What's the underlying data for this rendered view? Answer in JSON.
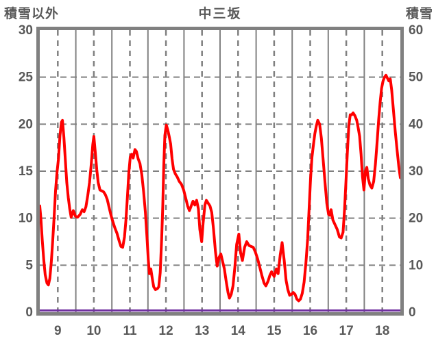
{
  "header": {
    "left_axis_title": "積雪以外",
    "title": "中三坂",
    "right_axis_title": "積雪"
  },
  "chart_data": {
    "type": "line",
    "title": "中三坂",
    "left_axis": {
      "title": "積雪以外",
      "min": 0,
      "max": 30,
      "tick_values": [
        0,
        5,
        10,
        15,
        20,
        25,
        30
      ],
      "tick_labels": [
        "0",
        "5",
        "10",
        "15",
        "20",
        "25",
        "30"
      ]
    },
    "right_axis": {
      "title": "積雪",
      "min": 0,
      "max": 60,
      "tick_values": [
        0,
        10,
        20,
        30,
        40,
        50,
        60
      ],
      "tick_labels": [
        "0",
        "10",
        "20",
        "30",
        "40",
        "50",
        "60"
      ]
    },
    "x_axis": {
      "range": [
        8.5,
        18.5
      ],
      "tick_values": [
        9,
        10,
        11,
        12,
        13,
        14,
        15,
        16,
        17,
        18
      ],
      "tick_labels": [
        "9",
        "10",
        "11",
        "12",
        "13",
        "14",
        "15",
        "16",
        "17",
        "18"
      ]
    },
    "grid": {
      "vertical_solid_at": [
        9.5,
        10.5,
        11.5,
        12.5,
        13.5,
        14.5,
        15.5,
        16.5,
        17.5
      ],
      "vertical_dashed_at": [
        9,
        10,
        11,
        12,
        13,
        14,
        15,
        16,
        17,
        18
      ],
      "horizontal_dashed_at": [
        5,
        10,
        15,
        20,
        25
      ],
      "color": "#808080"
    },
    "frame_color": "#808080",
    "text_color": "#595959",
    "series": [
      {
        "name": "積雪以外",
        "axis": "left",
        "color": "#ff0000",
        "width": 4,
        "points": [
          [
            8.5,
            11.3
          ],
          [
            8.53,
            10.0
          ],
          [
            8.57,
            7.6
          ],
          [
            8.61,
            5.6
          ],
          [
            8.65,
            4.0
          ],
          [
            8.7,
            3.1
          ],
          [
            8.74,
            2.9
          ],
          [
            8.78,
            3.6
          ],
          [
            8.82,
            5.3
          ],
          [
            8.86,
            7.6
          ],
          [
            8.9,
            10.2
          ],
          [
            8.94,
            13.0
          ],
          [
            8.98,
            14.9
          ],
          [
            9.02,
            16.4
          ],
          [
            9.06,
            18.8
          ],
          [
            9.1,
            20.2
          ],
          [
            9.13,
            20.4
          ],
          [
            9.17,
            18.6
          ],
          [
            9.21,
            16.2
          ],
          [
            9.25,
            13.8
          ],
          [
            9.29,
            12.2
          ],
          [
            9.33,
            11.0
          ],
          [
            9.37,
            10.1
          ],
          [
            9.43,
            10.8
          ],
          [
            9.49,
            10.2
          ],
          [
            9.55,
            10.1
          ],
          [
            9.62,
            10.4
          ],
          [
            9.68,
            10.9
          ],
          [
            9.73,
            10.7
          ],
          [
            9.78,
            11.2
          ],
          [
            9.83,
            12.4
          ],
          [
            9.88,
            13.8
          ],
          [
            9.93,
            15.8
          ],
          [
            9.97,
            17.8
          ],
          [
            10.0,
            18.7
          ],
          [
            10.04,
            17.0
          ],
          [
            10.08,
            15.2
          ],
          [
            10.12,
            13.8
          ],
          [
            10.17,
            13.0
          ],
          [
            10.22,
            12.9
          ],
          [
            10.27,
            12.8
          ],
          [
            10.32,
            12.5
          ],
          [
            10.37,
            12.0
          ],
          [
            10.42,
            11.2
          ],
          [
            10.47,
            10.4
          ],
          [
            10.52,
            9.7
          ],
          [
            10.58,
            9.0
          ],
          [
            10.64,
            8.4
          ],
          [
            10.7,
            7.6
          ],
          [
            10.75,
            7.0
          ],
          [
            10.8,
            6.9
          ],
          [
            10.85,
            8.0
          ],
          [
            10.89,
            9.8
          ],
          [
            10.93,
            12.2
          ],
          [
            10.97,
            14.8
          ],
          [
            11.01,
            16.5
          ],
          [
            11.05,
            16.8
          ],
          [
            11.09,
            16.4
          ],
          [
            11.14,
            17.3
          ],
          [
            11.18,
            17.1
          ],
          [
            11.23,
            16.3
          ],
          [
            11.28,
            15.8
          ],
          [
            11.33,
            14.6
          ],
          [
            11.38,
            12.8
          ],
          [
            11.43,
            10.6
          ],
          [
            11.47,
            8.2
          ],
          [
            11.51,
            5.6
          ],
          [
            11.54,
            4.1
          ],
          [
            11.58,
            4.6
          ],
          [
            11.62,
            3.6
          ],
          [
            11.66,
            2.7
          ],
          [
            11.71,
            2.4
          ],
          [
            11.76,
            2.5
          ],
          [
            11.8,
            2.7
          ],
          [
            11.84,
            4.2
          ],
          [
            11.88,
            7.8
          ],
          [
            11.91,
            11.2
          ],
          [
            11.94,
            15.6
          ],
          [
            11.97,
            18.8
          ],
          [
            12.01,
            19.9
          ],
          [
            12.05,
            19.4
          ],
          [
            12.09,
            18.7
          ],
          [
            12.13,
            17.9
          ],
          [
            12.17,
            16.3
          ],
          [
            12.21,
            15.2
          ],
          [
            12.26,
            14.7
          ],
          [
            12.31,
            14.4
          ],
          [
            12.37,
            13.9
          ],
          [
            12.43,
            13.6
          ],
          [
            12.49,
            13.0
          ],
          [
            12.55,
            12.1
          ],
          [
            12.6,
            11.3
          ],
          [
            12.65,
            10.8
          ],
          [
            12.7,
            11.3
          ],
          [
            12.75,
            11.8
          ],
          [
            12.8,
            11.4
          ],
          [
            12.85,
            11.9
          ],
          [
            12.9,
            11.0
          ],
          [
            12.94,
            8.8
          ],
          [
            12.99,
            7.5
          ],
          [
            13.03,
            9.5
          ],
          [
            13.08,
            11.4
          ],
          [
            13.12,
            11.9
          ],
          [
            13.17,
            11.6
          ],
          [
            13.22,
            11.3
          ],
          [
            13.27,
            10.6
          ],
          [
            13.32,
            8.8
          ],
          [
            13.37,
            6.5
          ],
          [
            13.42,
            4.9
          ],
          [
            13.47,
            5.8
          ],
          [
            13.52,
            6.2
          ],
          [
            13.57,
            5.4
          ],
          [
            13.62,
            4.6
          ],
          [
            13.67,
            3.3
          ],
          [
            13.72,
            2.1
          ],
          [
            13.76,
            1.5
          ],
          [
            13.81,
            1.9
          ],
          [
            13.86,
            2.8
          ],
          [
            13.91,
            4.8
          ],
          [
            13.96,
            7.2
          ],
          [
            14.02,
            8.3
          ],
          [
            14.07,
            6.3
          ],
          [
            14.12,
            5.5
          ],
          [
            14.18,
            6.9
          ],
          [
            14.24,
            7.5
          ],
          [
            14.3,
            7.1
          ],
          [
            14.36,
            7.0
          ],
          [
            14.42,
            6.9
          ],
          [
            14.48,
            6.4
          ],
          [
            14.54,
            5.7
          ],
          [
            14.6,
            4.8
          ],
          [
            14.66,
            3.9
          ],
          [
            14.72,
            3.1
          ],
          [
            14.77,
            2.8
          ],
          [
            14.83,
            3.3
          ],
          [
            14.88,
            3.9
          ],
          [
            14.93,
            4.3
          ],
          [
            15.0,
            3.8
          ],
          [
            15.06,
            4.6
          ],
          [
            15.11,
            4.1
          ],
          [
            15.17,
            6.1
          ],
          [
            15.22,
            7.4
          ],
          [
            15.28,
            5.5
          ],
          [
            15.33,
            3.4
          ],
          [
            15.38,
            2.4
          ],
          [
            15.43,
            1.8
          ],
          [
            15.48,
            1.9
          ],
          [
            15.53,
            2.1
          ],
          [
            15.58,
            1.9
          ],
          [
            15.63,
            1.4
          ],
          [
            15.68,
            1.2
          ],
          [
            15.73,
            1.4
          ],
          [
            15.78,
            2.0
          ],
          [
            15.83,
            3.2
          ],
          [
            15.88,
            5.2
          ],
          [
            15.93,
            7.8
          ],
          [
            15.97,
            11.0
          ],
          [
            16.01,
            14.2
          ],
          [
            16.05,
            16.5
          ],
          [
            16.09,
            17.8
          ],
          [
            16.13,
            19.0
          ],
          [
            16.17,
            19.8
          ],
          [
            16.21,
            20.4
          ],
          [
            16.26,
            20.0
          ],
          [
            16.31,
            18.5
          ],
          [
            16.36,
            16.2
          ],
          [
            16.41,
            13.8
          ],
          [
            16.46,
            11.6
          ],
          [
            16.51,
            10.4
          ],
          [
            16.55,
            10.3
          ],
          [
            16.58,
            10.9
          ],
          [
            16.63,
            9.8
          ],
          [
            16.69,
            9.3
          ],
          [
            16.75,
            8.8
          ],
          [
            16.81,
            8.0
          ],
          [
            16.86,
            7.9
          ],
          [
            16.91,
            8.5
          ],
          [
            16.95,
            10.8
          ],
          [
            16.99,
            13.8
          ],
          [
            17.03,
            17.0
          ],
          [
            17.07,
            19.8
          ],
          [
            17.11,
            21.0
          ],
          [
            17.15,
            21.0
          ],
          [
            17.19,
            21.2
          ],
          [
            17.24,
            20.9
          ],
          [
            17.29,
            20.4
          ],
          [
            17.33,
            19.6
          ],
          [
            17.37,
            18.7
          ],
          [
            17.41,
            16.8
          ],
          [
            17.45,
            14.4
          ],
          [
            17.49,
            13.0
          ],
          [
            17.53,
            15.0
          ],
          [
            17.57,
            15.4
          ],
          [
            17.61,
            14.2
          ],
          [
            17.66,
            13.5
          ],
          [
            17.71,
            13.2
          ],
          [
            17.76,
            13.9
          ],
          [
            17.81,
            15.8
          ],
          [
            17.86,
            18.3
          ],
          [
            17.9,
            20.5
          ],
          [
            17.94,
            22.3
          ],
          [
            17.98,
            23.8
          ],
          [
            18.02,
            24.6
          ],
          [
            18.06,
            25.0
          ],
          [
            18.1,
            25.2
          ],
          [
            18.14,
            24.9
          ],
          [
            18.18,
            24.6
          ],
          [
            18.22,
            24.8
          ],
          [
            18.26,
            23.6
          ],
          [
            18.31,
            21.4
          ],
          [
            18.36,
            19.2
          ],
          [
            18.41,
            17.2
          ],
          [
            18.46,
            15.4
          ],
          [
            18.5,
            14.3
          ]
        ]
      },
      {
        "name": "積雪",
        "axis": "right",
        "color": "#7030a0",
        "width": 3,
        "points": [
          [
            8.5,
            0
          ],
          [
            18.5,
            0
          ]
        ]
      }
    ]
  }
}
